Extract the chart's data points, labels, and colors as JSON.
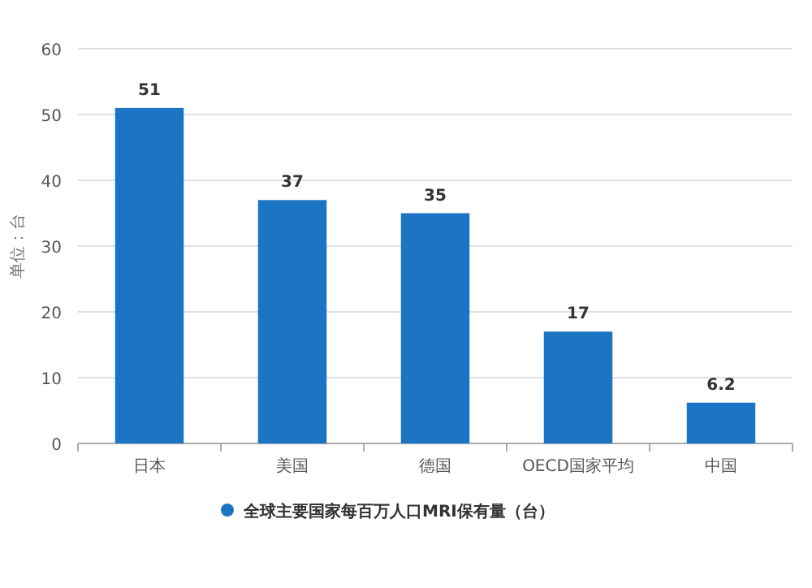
{
  "chart_data": {
    "type": "bar",
    "ylabel": "单位：台",
    "categories": [
      "日本",
      "美国",
      "德国",
      "OECD国家平均",
      "中国"
    ],
    "series": [
      {
        "name": "全球主要国家每百万人口MRI保有量（台）",
        "color": "#1b75c4",
        "values": [
          51,
          37,
          35,
          17,
          6.2
        ]
      }
    ],
    "ylim": [
      0,
      60
    ],
    "yticks": [
      0,
      10,
      20,
      30,
      40,
      50,
      60
    ],
    "grid": "y",
    "legend": "bottom",
    "data_labels": true
  }
}
